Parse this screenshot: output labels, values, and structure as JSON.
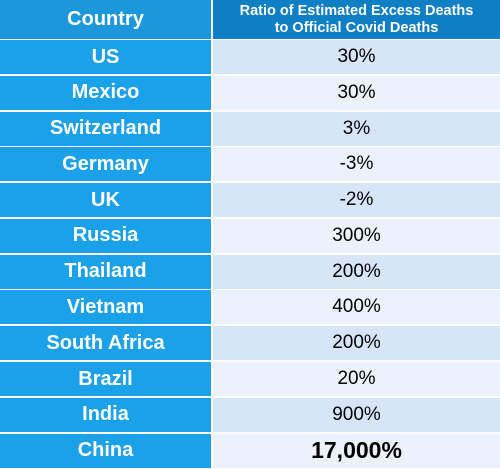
{
  "table": {
    "header": {
      "country": "Country",
      "ratio_line1": "Ratio of Estimated Excess Deaths",
      "ratio_line2": "to Official Covid Deaths"
    },
    "rows": [
      {
        "country": "US",
        "value": "30%"
      },
      {
        "country": "Mexico",
        "value": "30%"
      },
      {
        "country": "Switzerland",
        "value": "3%"
      },
      {
        "country": "Germany",
        "value": "-3%"
      },
      {
        "country": "UK",
        "value": "-2%"
      },
      {
        "country": "Russia",
        "value": "300%"
      },
      {
        "country": "Thailand",
        "value": "200%"
      },
      {
        "country": "Vietnam",
        "value": "400%"
      },
      {
        "country": "South Africa",
        "value": "200%"
      },
      {
        "country": "Brazil",
        "value": "20%"
      },
      {
        "country": "India",
        "value": "900%"
      },
      {
        "country": "China",
        "value": "17,000%"
      }
    ]
  },
  "chart_data": {
    "type": "table",
    "columns": [
      "Country",
      "Ratio of Estimated Excess Deaths to Official Covid Deaths"
    ],
    "categories": [
      "US",
      "Mexico",
      "Switzerland",
      "Germany",
      "UK",
      "Russia",
      "Thailand",
      "Vietnam",
      "South Africa",
      "Brazil",
      "India",
      "China"
    ],
    "values": [
      30,
      30,
      3,
      -3,
      -2,
      300,
      200,
      400,
      200,
      20,
      900,
      17000
    ],
    "unit": "%"
  },
  "colors": {
    "header_left": "#1c97dc",
    "header_right": "#0e7fc4",
    "country_cell": "#1ba0ea",
    "value_row_even": "#d6e6f8",
    "value_row_odd": "#ebf2fb"
  }
}
